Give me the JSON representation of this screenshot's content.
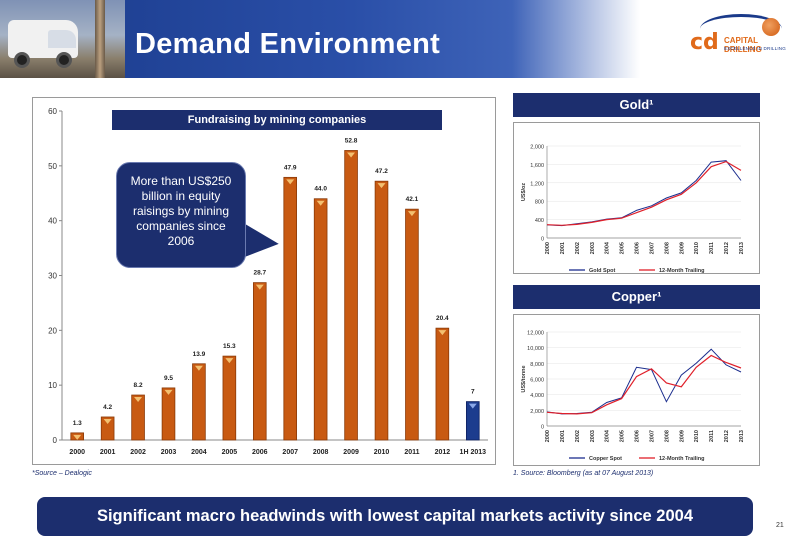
{
  "header": {
    "title": "Demand Environment"
  },
  "logo": {
    "mark": "cd",
    "name": "CAPITAL DRILLING",
    "tagline": "EXCELLENCE IN DRILLING"
  },
  "main_chart": {
    "title": "Fundraising by mining companies",
    "callout": "More than US$250 billion in equity raisings by mining companies since 2006"
  },
  "gold_panel": {
    "title": "Gold¹"
  },
  "copper_panel": {
    "title": "Copper¹"
  },
  "footnotes": {
    "source_left": "*Source – Dealogic",
    "source_right": "1.   Source: Bloomberg (as at 07 August 2013)"
  },
  "bottom_banner": "Significant macro headwinds with lowest capital markets activity since 2004",
  "page_number": "21",
  "colors": {
    "navy": "#1c2e6e",
    "bar_orange": "#c85a12",
    "bar_navy": "#1c3c8e",
    "red_line": "#e0202a"
  },
  "chart_data": [
    {
      "type": "bar",
      "title": "Fundraising by mining companies",
      "categories": [
        "2000",
        "2001",
        "2002",
        "2003",
        "2004",
        "2005",
        "2006",
        "2007",
        "2008",
        "2009",
        "2010",
        "2011",
        "2012",
        "1H 2013"
      ],
      "values": [
        1.3,
        4.2,
        8.2,
        9.5,
        13.9,
        15.3,
        28.7,
        47.9,
        44.0,
        52.8,
        47.2,
        42.1,
        20.4,
        7
      ],
      "labels": [
        "1.3",
        "4.2",
        "8.2",
        "9.5",
        "13.9",
        "15.3",
        "28.7",
        "47.9",
        "44.0",
        "52.8",
        "47.2",
        "42.1",
        "20.4",
        "7"
      ],
      "ylim": [
        0,
        60
      ],
      "yticks": [
        0,
        10,
        20,
        30,
        40,
        50,
        60
      ]
    },
    {
      "type": "line",
      "title": "Gold¹",
      "ylabel": "US$/oz",
      "ylim": [
        0,
        2000
      ],
      "yticks": [
        "0",
        "400",
        "800",
        "1,200",
        "1,600",
        "2,000"
      ],
      "x": [
        "2000",
        "2001",
        "2002",
        "2003",
        "2004",
        "2005",
        "2006",
        "2007",
        "2008",
        "2009",
        "2010",
        "2011",
        "2012",
        "2013"
      ],
      "series": [
        {
          "name": "Gold Spot",
          "values": [
            285,
            270,
            310,
            350,
            410,
            440,
            600,
            700,
            870,
            980,
            1250,
            1650,
            1680,
            1250
          ]
        },
        {
          "name": "12-Month Trailing",
          "values": [
            290,
            275,
            295,
            340,
            400,
            430,
            550,
            670,
            830,
            950,
            1200,
            1550,
            1660,
            1470
          ]
        }
      ]
    },
    {
      "type": "line",
      "title": "Copper¹",
      "ylabel": "US$/tonne",
      "ylim": [
        0,
        12000
      ],
      "yticks": [
        "0",
        "2,000",
        "4,000",
        "6,000",
        "8,000",
        "10,000",
        "12,000"
      ],
      "x": [
        "2000",
        "2001",
        "2002",
        "2003",
        "2004",
        "2005",
        "2006",
        "2007",
        "2008",
        "2009",
        "2010",
        "2011",
        "2012",
        "2013"
      ],
      "series": [
        {
          "name": "Copper Spot",
          "values": [
            1800,
            1550,
            1600,
            1750,
            3000,
            3600,
            7500,
            7200,
            3100,
            6500,
            8000,
            9800,
            7800,
            6900
          ]
        },
        {
          "name": "12-Month Trailing",
          "values": [
            1750,
            1600,
            1550,
            1700,
            2700,
            3500,
            6300,
            7300,
            5500,
            5000,
            7500,
            9000,
            8100,
            7400
          ]
        }
      ]
    }
  ]
}
